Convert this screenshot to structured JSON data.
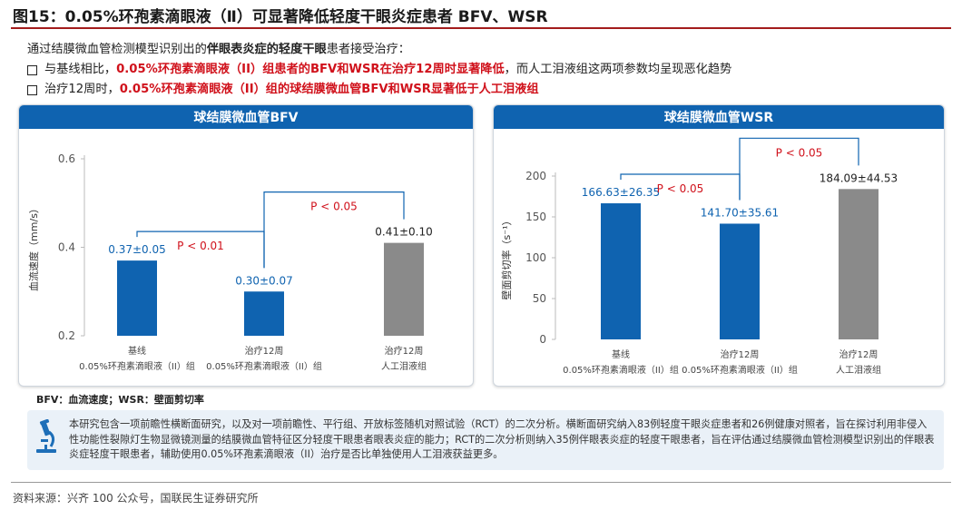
{
  "header": {
    "title": "图15：0.05%环孢素滴眼液（Ⅱ）可显著降低轻度干眼炎症患者 BFV、WSR"
  },
  "intro": {
    "line1_prefix": "通过结膜微血管检测模型识别出的",
    "line1_bold": "伴眼表炎症的轻度干眼",
    "line1_suffix": "患者接受治疗：",
    "bullet1_prefix": "与基线相比，",
    "bullet1_red": "0.05%环孢素滴眼液（II）组患者的BFV和WSR在治疗12周时显著降低",
    "bullet1_suffix": "，而人工泪液组这两项参数均呈现恶化趋势",
    "bullet2_prefix": "治疗12周时，",
    "bullet2_red": "0.05%环孢素滴眼液（II）组的球结膜微血管BFV和WSR显著低于人工泪液组"
  },
  "colors": {
    "blue_bar": "#0f63b0",
    "gray_bar": "#8a8a8a",
    "bracket": "#0f63b0",
    "pvalue": "#d0111b",
    "label_blue": "#0f63b0",
    "label_dark": "#222222",
    "header_bg": "#0f63b0"
  },
  "chart_data": [
    {
      "type": "bar",
      "title": "球结膜微血管BFV",
      "ylabel": "血流速度（mm/s）",
      "ylim": [
        0.2,
        0.6
      ],
      "yticks": [
        "0.2",
        "0.4",
        "0.6"
      ],
      "categories": [
        [
          "基线",
          "0.05%环孢素滴眼液（II）组"
        ],
        [
          "治疗12周",
          "0.05%环孢素滴眼液（II）组"
        ],
        [
          "治疗12周",
          "人工泪液组"
        ]
      ],
      "values": [
        0.37,
        0.3,
        0.41
      ],
      "labels": [
        "0.37±0.05",
        "0.30±0.07",
        "0.41±0.10"
      ],
      "bar_colors": [
        "blue",
        "blue",
        "gray"
      ],
      "label_colors": [
        "blue",
        "blue",
        "dark"
      ],
      "comparisons": [
        {
          "from": 0,
          "to": 1,
          "text": "P < 0.01"
        },
        {
          "from": 1,
          "to": 2,
          "text": "P < 0.05"
        }
      ]
    },
    {
      "type": "bar",
      "title": "球结膜微血管WSR",
      "ylabel": "壁面剪切率（s⁻¹）",
      "ylim": [
        0,
        200
      ],
      "yticks": [
        "0",
        "50",
        "100",
        "150",
        "200"
      ],
      "categories": [
        [
          "基线",
          "0.05%环孢素滴眼液（II）组"
        ],
        [
          "治疗12周",
          "0.05%环孢素滴眼液（II）组"
        ],
        [
          "治疗12周",
          "人工泪液组"
        ]
      ],
      "values": [
        166.63,
        141.7,
        184.09
      ],
      "labels": [
        "166.63±26.35",
        "141.70±35.61",
        "184.09±44.53"
      ],
      "bar_colors": [
        "blue",
        "blue",
        "gray"
      ],
      "label_colors": [
        "blue",
        "blue",
        "dark"
      ],
      "comparisons": [
        {
          "from": 0,
          "to": 1,
          "text": "P < 0.05"
        },
        {
          "from": 1,
          "to": 2,
          "text": "P < 0.05"
        }
      ]
    }
  ],
  "legend_note": "BFV：血流速度；WSR：壁面剪切率",
  "study": {
    "icon": "microscope-icon",
    "text": "本研究包含一项前瞻性横断面研究，以及对一项前瞻性、平行组、开放标签随机对照试验（RCT）的二次分析。横断面研究纳入83例轻度干眼炎症患者和26例健康对照者，旨在探讨利用非侵入性功能性裂隙灯生物显微镜测量的结膜微血管特征区分轻度干眼患者眼表炎症的能力；RCT的二次分析则纳入35例伴眼表炎症的轻度干眼患者，旨在评估通过结膜微血管检测模型识别出的伴眼表炎症轻度干眼患者，辅助使用0.05%环孢素滴眼液（II）治疗是否比单独使用人工泪液获益更多。"
  },
  "source": "资料来源：兴齐 100 公众号，国联民生证券研究所"
}
